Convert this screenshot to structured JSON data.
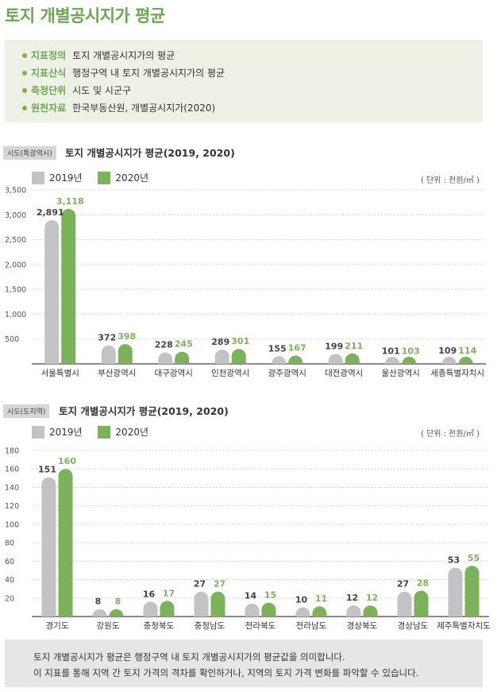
{
  "page_title": "토지 개별공시지가 평균",
  "info": [
    {
      "label": "지표정의",
      "text": "토지 개별공시지가의 평균"
    },
    {
      "label": "지표산식",
      "text": "행정구역 내 토지 개별공시지가의 평균"
    },
    {
      "label": "측정단위",
      "text": "시도 및 시군구"
    },
    {
      "label": "원천자료",
      "text": "한국부동산원, 개별공시지가(2020)"
    }
  ],
  "colors": {
    "accent": "#6aa84f",
    "series_2019": "#c3c3c6",
    "series_2020": "#7cb35a"
  },
  "chart_data": [
    {
      "type": "bar",
      "tag": "시도(특광역시)",
      "title": "토지 개별공시지가 평균(2019, 2020)",
      "unit": "( 단위 : 천원/㎡ )",
      "categories": [
        "서울특별시",
        "부산광역시",
        "대구광역시",
        "인천광역시",
        "광주광역시",
        "대전광역시",
        "울산광역시",
        "세종특별자치시"
      ],
      "series": [
        {
          "name": "2019년",
          "values": [
            2891,
            372,
            228,
            289,
            155,
            199,
            101,
            109
          ],
          "labels": [
            "2,891",
            "372",
            "228",
            "289",
            "155",
            "199",
            "101",
            "109"
          ]
        },
        {
          "name": "2020년",
          "values": [
            3118,
            398,
            245,
            301,
            167,
            211,
            103,
            114
          ],
          "labels": [
            "3,118",
            "398",
            "245",
            "301",
            "167",
            "211",
            "103",
            "114"
          ]
        }
      ],
      "yticks": [
        500,
        1000,
        1500,
        2000,
        2500,
        3000,
        3500
      ],
      "ytick_labels": [
        "500",
        "1,000",
        "1,500",
        "2,000",
        "2,500",
        "3,000",
        "3,500"
      ],
      "ylim": [
        0,
        3500
      ],
      "grid": true
    },
    {
      "type": "bar",
      "tag": "시도(도지역)",
      "title": "토지 개별공시지가 평균(2019, 2020)",
      "unit": "( 단위 : 천원/㎡ )",
      "categories": [
        "경기도",
        "강원도",
        "충청북도",
        "충청남도",
        "전라북도",
        "전라남도",
        "경상북도",
        "경상남도",
        "제주특별자치도"
      ],
      "series": [
        {
          "name": "2019년",
          "values": [
            151,
            8,
            16,
            27,
            14,
            10,
            12,
            27,
            53
          ],
          "labels": [
            "151",
            "8",
            "16",
            "27",
            "14",
            "10",
            "12",
            "27",
            "53"
          ]
        },
        {
          "name": "2020년",
          "values": [
            160,
            8,
            17,
            27,
            15,
            11,
            12,
            28,
            55
          ],
          "labels": [
            "160",
            "8",
            "17",
            "27",
            "15",
            "11",
            "12",
            "28",
            "55"
          ]
        }
      ],
      "yticks": [
        20,
        40,
        60,
        80,
        100,
        120,
        140,
        160,
        180
      ],
      "ytick_labels": [
        "20",
        "40",
        "60",
        "80",
        "100",
        "120",
        "140",
        "160",
        "180"
      ],
      "ylim": [
        0,
        180
      ],
      "grid": true
    }
  ],
  "note": [
    "토지 개별공시지가 평균은 행정구역 내 토지 개별공시지가의 평균값을 의미합니다.",
    "이 지표를 통해 지역 간 토지 가격의 격차를 확인하거나, 지역의 토지 가격 변화를 파악할 수 있습니다."
  ]
}
